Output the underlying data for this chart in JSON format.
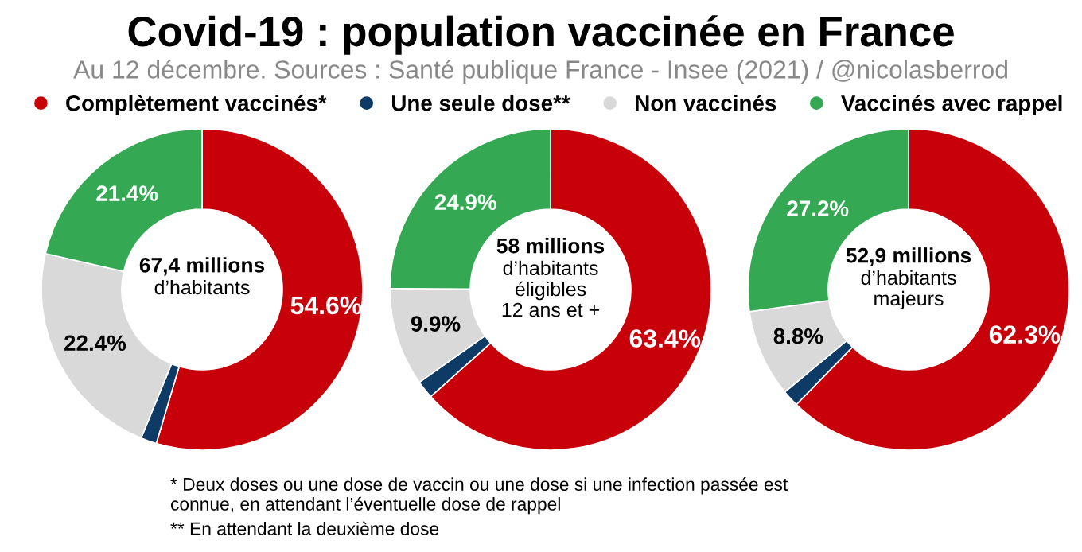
{
  "chart_data": [
    {
      "type": "other",
      "title": "Covid-19 : population vaccinée en France",
      "subtitle": "Au 12 décembre. Sources : Santé publique France - Insee (2021) / @nicolasberrod",
      "annotations": [
        "* Deux doses ou une dose de vaccin ou une dose si une infection passée est\nconnue, en attendant l’éventuelle dose de rappel",
        "** En attendant la deuxième dose"
      ]
    },
    {
      "type": "donut",
      "title": "67,4 millions",
      "subtitle": "d’habitants",
      "legend": "top",
      "categories": [
        "Complètement vaccinés*",
        "Une seule dose**",
        "Non vaccinés",
        "Vaccinés avec rappel"
      ],
      "values": [
        54.6,
        1.6,
        22.4,
        21.4
      ],
      "colors": [
        "#c8000a",
        "#0d3b66",
        "#d9d9d9",
        "#34a853"
      ],
      "value_labels": [
        "54.6%",
        null,
        "22.4%",
        "21.4%"
      ]
    },
    {
      "type": "donut",
      "title": "58 millions",
      "subtitle": "d’habitants\néligibles\n12 ans et +",
      "values": [
        63.4,
        1.8,
        9.9,
        24.9
      ],
      "colors": [
        "#c8000a",
        "#0d3b66",
        "#d9d9d9",
        "#34a853"
      ],
      "value_labels": [
        "63.4%",
        null,
        "9.9%",
        "24.9%"
      ]
    },
    {
      "type": "donut",
      "title": "52,9 millions",
      "subtitle": "d’habitants\nmajeurs",
      "values": [
        62.3,
        1.7,
        8.8,
        27.2
      ],
      "colors": [
        "#c8000a",
        "#0d3b66",
        "#d9d9d9",
        "#34a853"
      ],
      "value_labels": [
        "62.3%",
        null,
        "8.8%",
        "27.2%"
      ]
    }
  ]
}
